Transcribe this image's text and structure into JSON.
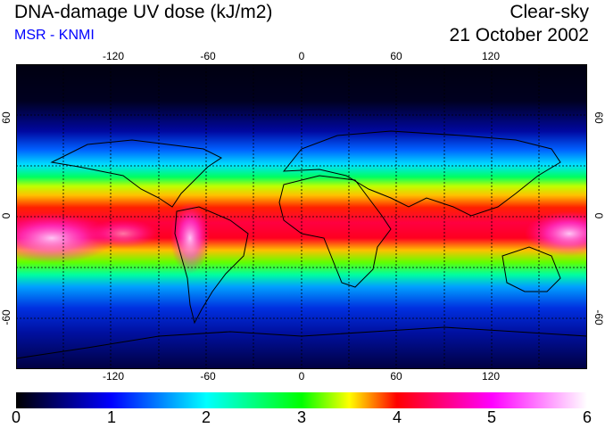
{
  "header": {
    "title": "DNA-damage UV dose (kJ/m2)",
    "source": "MSR - KNMI",
    "condition": "Clear-sky",
    "date": "21 October 2002"
  },
  "map": {
    "projection": "equirectangular",
    "lon_range": [
      -180,
      180
    ],
    "lat_range": [
      -90,
      90
    ],
    "lon_ticks": [
      "-120",
      "-60",
      "0",
      "60",
      "120"
    ],
    "lat_ticks": [
      "60",
      "0",
      "-60"
    ],
    "gridlines": "dotted",
    "background": "#000000"
  },
  "colorbar": {
    "labels": [
      "0",
      "1",
      "2",
      "3",
      "4",
      "5",
      "6"
    ],
    "min": 0,
    "max": 6,
    "colors": [
      "#000000",
      "#0000ff",
      "#00ffff",
      "#00ff00",
      "#ffff00",
      "#ff0000",
      "#ff00ff",
      "#ffffff"
    ]
  }
}
